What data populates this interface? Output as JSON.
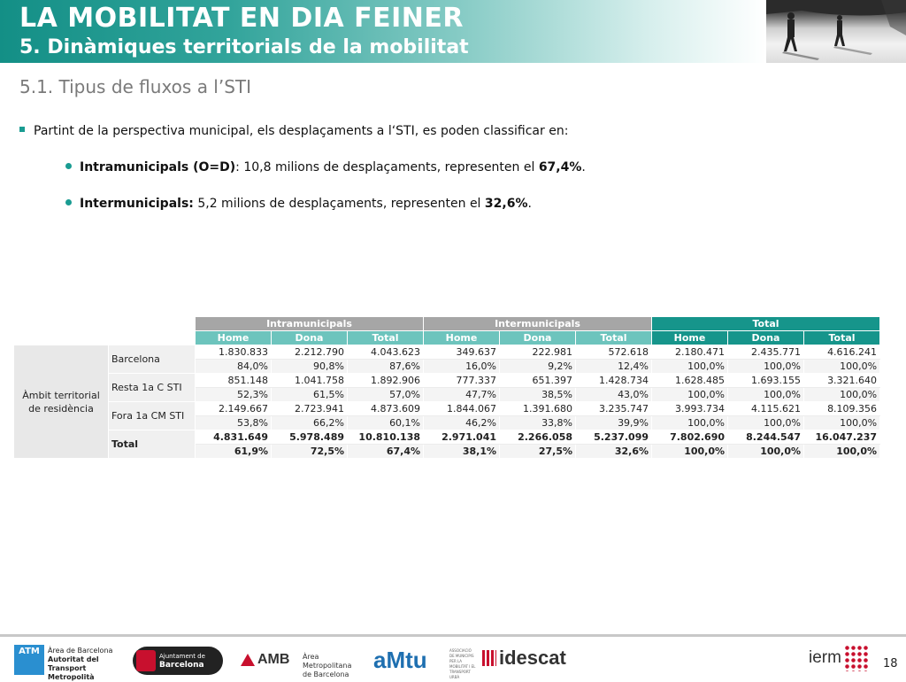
{
  "header": {
    "title": "LA MOBILITAT EN DIA FEINER",
    "subtitle": "5. Dinàmiques territorials de la mobilitat",
    "section": "5.1. Tipus de fluxos a l’STI"
  },
  "bullets": {
    "intro": "Partint de la perspectiva municipal, els desplaçaments a l‘STI, es poden classificar en:",
    "items": [
      {
        "label": "Intramunicipals (O=D)",
        "sep": ": ",
        "text": "10,8 milions de desplaçaments, representen el ",
        "value": "67,4%",
        "end": "."
      },
      {
        "label": "Intermunicipals:",
        "sep": " ",
        "text": "5,2 milions de desplaçaments, representen el ",
        "value": "32,6%",
        "end": "."
      }
    ]
  },
  "table": {
    "groups": [
      "Intramunicipals",
      "Intermunicipals",
      "Total"
    ],
    "subheaders": [
      "Home",
      "Dona",
      "Total"
    ],
    "row_header": "Àmbit territorial de residència",
    "rows": [
      {
        "label": "Barcelona",
        "counts": [
          "1.830.833",
          "2.212.790",
          "4.043.623",
          "349.637",
          "222.981",
          "572.618",
          "2.180.471",
          "2.435.771",
          "4.616.241"
        ],
        "pcts": [
          "84,0%",
          "90,8%",
          "87,6%",
          "16,0%",
          "9,2%",
          "12,4%",
          "100,0%",
          "100,0%",
          "100,0%"
        ]
      },
      {
        "label": "Resta 1a C STI",
        "counts": [
          "851.148",
          "1.041.758",
          "1.892.906",
          "777.337",
          "651.397",
          "1.428.734",
          "1.628.485",
          "1.693.155",
          "3.321.640"
        ],
        "pcts": [
          "52,3%",
          "61,5%",
          "57,0%",
          "47,7%",
          "38,5%",
          "43,0%",
          "100,0%",
          "100,0%",
          "100,0%"
        ]
      },
      {
        "label": "Fora 1a CM STI",
        "counts": [
          "2.149.667",
          "2.723.941",
          "4.873.609",
          "1.844.067",
          "1.391.680",
          "3.235.747",
          "3.993.734",
          "4.115.621",
          "8.109.356"
        ],
        "pcts": [
          "53,8%",
          "66,2%",
          "60,1%",
          "46,2%",
          "33,8%",
          "39,9%",
          "100,0%",
          "100,0%",
          "100,0%"
        ]
      },
      {
        "label": "Total",
        "counts": [
          "4.831.649",
          "5.978.489",
          "10.810.138",
          "2.971.041",
          "2.266.058",
          "5.237.099",
          "7.802.690",
          "8.244.547",
          "16.047.237"
        ],
        "pcts": [
          "61,9%",
          "72,5%",
          "67,4%",
          "38,1%",
          "27,5%",
          "32,6%",
          "100,0%",
          "100,0%",
          "100,0%"
        ]
      }
    ]
  },
  "footer": {
    "atm": {
      "badge": "ATM",
      "line1": "Àrea de Barcelona",
      "line2": "Autoritat del Transport",
      "line3": "Metropolità"
    },
    "barcelona": {
      "line1": "Ajuntament de",
      "line2": "Barcelona"
    },
    "amb": {
      "name": "AMB",
      "line1": "Àrea Metropolitana",
      "line2": "de Barcelona"
    },
    "amtu": {
      "name": "aMtu",
      "sub": "ASSOCIACIÓ DE MUNICIPIS PER LA MOBILITAT I EL TRANSPORT URBÀ"
    },
    "idescat": {
      "name": "idescat"
    },
    "iermb": {
      "name": "ierm"
    },
    "page_number": "18"
  },
  "colors": {
    "teal": "#16958b",
    "teal_light": "#6dc4bd",
    "gray_header": "#a6a6a6",
    "section_gray": "#7a7a7a"
  }
}
